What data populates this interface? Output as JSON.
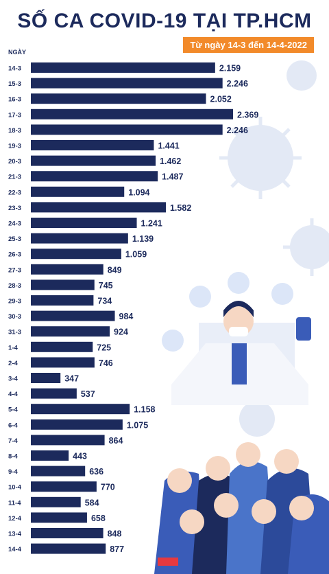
{
  "header": {
    "title": "SỐ CA COVID-19 TẠI TP.HCM",
    "subtitle": "Từ ngày 14-3 đến 14-4-2022"
  },
  "colors": {
    "bar": "#1c2a5c",
    "title": "#1c2a5c",
    "subtitle_bg": "#f28a2a",
    "virus": "#dfe6f3",
    "figures": "#3a5cb8"
  },
  "chart_data": {
    "type": "bar",
    "orientation": "horizontal",
    "xlabel": "NGÀY",
    "ylabel": "",
    "categories": [
      "14-3",
      "15-3",
      "16-3",
      "17-3",
      "18-3",
      "19-3",
      "20-3",
      "21-3",
      "22-3",
      "23-3",
      "24-3",
      "25-3",
      "26-3",
      "27-3",
      "28-3",
      "29-3",
      "30-3",
      "31-3",
      "1-4",
      "2-4",
      "3-4",
      "4-4",
      "5-4",
      "6-4",
      "7-4",
      "8-4",
      "9-4",
      "10-4",
      "11-4",
      "12-4",
      "13-4",
      "14-4"
    ],
    "values": [
      2159,
      2246,
      2052,
      2369,
      2246,
      1441,
      1462,
      1487,
      1094,
      1582,
      1241,
      1139,
      1059,
      849,
      745,
      734,
      984,
      924,
      725,
      746,
      347,
      537,
      1158,
      1075,
      864,
      443,
      636,
      770,
      584,
      658,
      848,
      877
    ],
    "value_labels": [
      "2.159",
      "2.246",
      "2.052",
      "2.369",
      "2.246",
      "1.441",
      "1.462",
      "1.487",
      "1.094",
      "1.582",
      "1.241",
      "1.139",
      "1.059",
      "849",
      "745",
      "734",
      "984",
      "924",
      "725",
      "746",
      "347",
      "537",
      "1.158",
      "1.075",
      "864",
      "443",
      "636",
      "770",
      "584",
      "658",
      "848",
      "877"
    ],
    "grid": false,
    "legend": "none"
  }
}
